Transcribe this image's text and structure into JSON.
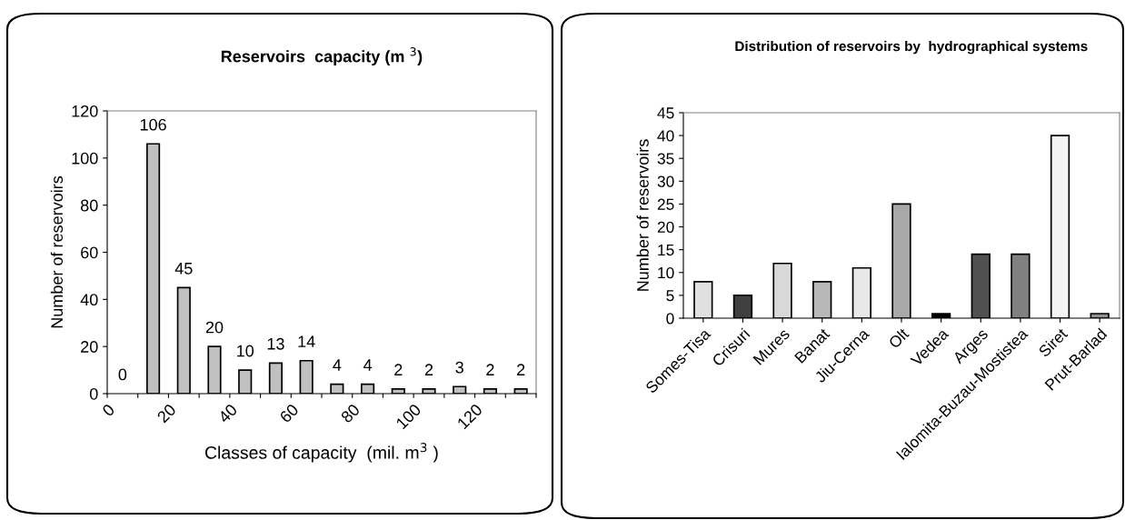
{
  "chart_data": [
    {
      "type": "histogram",
      "title": "Reservoirs  capacity (m $^{3}$)",
      "xlabel": "Classes of capacity  (mil. m$^{3}$ )",
      "ylabel": "Number of reservoirs",
      "bins": [
        0,
        10,
        20,
        30,
        40,
        50,
        60,
        70,
        80,
        90,
        100,
        110,
        120,
        130,
        140
      ],
      "values": [
        0,
        106,
        45,
        20,
        10,
        13,
        14,
        4,
        4,
        2,
        2,
        3,
        2,
        2
      ],
      "color": "#c0c0c0",
      "data_labels": true,
      "xlim": [
        0,
        140
      ],
      "xticks": [
        0,
        {
          "value": 10,
          "label": null
        },
        20,
        {
          "value": 30,
          "label": null
        },
        40,
        {
          "value": 50,
          "label": null
        },
        60,
        {
          "value": 70,
          "label": null
        },
        80,
        {
          "value": 90,
          "label": null
        },
        100,
        {
          "value": 110,
          "label": null
        },
        120,
        {
          "value": 130,
          "label": null
        },
        {
          "value": 140,
          "label": null
        }
      ],
      "ylim": [
        0,
        120
      ],
      "yticks": [
        0,
        20,
        40,
        60,
        80,
        100,
        120
      ],
      "grid": false,
      "legend": false
    },
    {
      "type": "bar",
      "title": "Distribution of reservoirs by  hydrographical systems",
      "ylabel": "Number of reservoirs",
      "categories": [
        "Somes-Tisa",
        "Crisuri",
        "Mures",
        "Banat",
        "Jiu-Cerna",
        "Olt",
        "Vedea",
        "Arges",
        "Ialomita-Buzau-Mostistea",
        "Siret",
        "Prut-Barlad"
      ],
      "values": [
        8,
        5,
        12,
        8,
        11,
        25,
        1,
        14,
        14,
        40,
        1
      ],
      "colors": [
        "#e0e0e0",
        "#404040",
        "#d8d8d8",
        "#b8b8b8",
        "#e8e8e8",
        "#a8a8a8",
        "#000000",
        "#505050",
        "#808080",
        "#f4f4f4",
        "#909090"
      ],
      "ylim": [
        0,
        45
      ],
      "yticks": [
        0,
        5,
        10,
        15,
        20,
        25,
        30,
        35,
        40,
        45
      ],
      "grid": false,
      "legend": false
    }
  ]
}
